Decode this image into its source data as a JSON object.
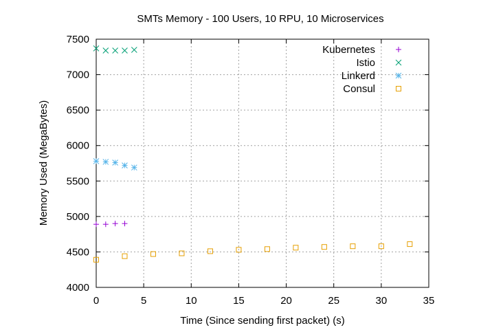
{
  "chart_data": {
    "type": "scatter",
    "title": "SMTs Memory - 100 Users, 10 RPU, 10 Microservices",
    "xlabel": "Time (Since sending first packet) (s)",
    "ylabel": "Memory Used (MegaBytes)",
    "xlim": [
      0,
      35
    ],
    "ylim": [
      4000,
      7500
    ],
    "xticks": [
      0,
      5,
      10,
      15,
      20,
      25,
      30,
      35
    ],
    "yticks": [
      4000,
      4500,
      5000,
      5500,
      6000,
      6500,
      7000,
      7500
    ],
    "grid": true,
    "legend_position": "top-right",
    "series": [
      {
        "name": "Kubernetes",
        "marker": "plus",
        "color": "#9400d3",
        "points": [
          [
            0,
            4890
          ],
          [
            1,
            4890
          ],
          [
            2,
            4900
          ],
          [
            3,
            4900
          ]
        ]
      },
      {
        "name": "Istio",
        "marker": "cross",
        "color": "#009e73",
        "points": [
          [
            0,
            7370
          ],
          [
            1,
            7340
          ],
          [
            2,
            7340
          ],
          [
            3,
            7340
          ],
          [
            4,
            7350
          ]
        ]
      },
      {
        "name": "Linkerd",
        "marker": "star",
        "color": "#56b4e9",
        "points": [
          [
            0,
            5780
          ],
          [
            1,
            5770
          ],
          [
            2,
            5760
          ],
          [
            3,
            5720
          ],
          [
            4,
            5690
          ]
        ]
      },
      {
        "name": "Consul",
        "marker": "square",
        "color": "#e69f00",
        "points": [
          [
            0,
            4390
          ],
          [
            3,
            4440
          ],
          [
            6,
            4470
          ],
          [
            9,
            4480
          ],
          [
            12,
            4510
          ],
          [
            15,
            4530
          ],
          [
            18,
            4540
          ],
          [
            21,
            4560
          ],
          [
            24,
            4570
          ],
          [
            27,
            4580
          ],
          [
            30,
            4580
          ],
          [
            33,
            4610
          ]
        ]
      }
    ]
  }
}
